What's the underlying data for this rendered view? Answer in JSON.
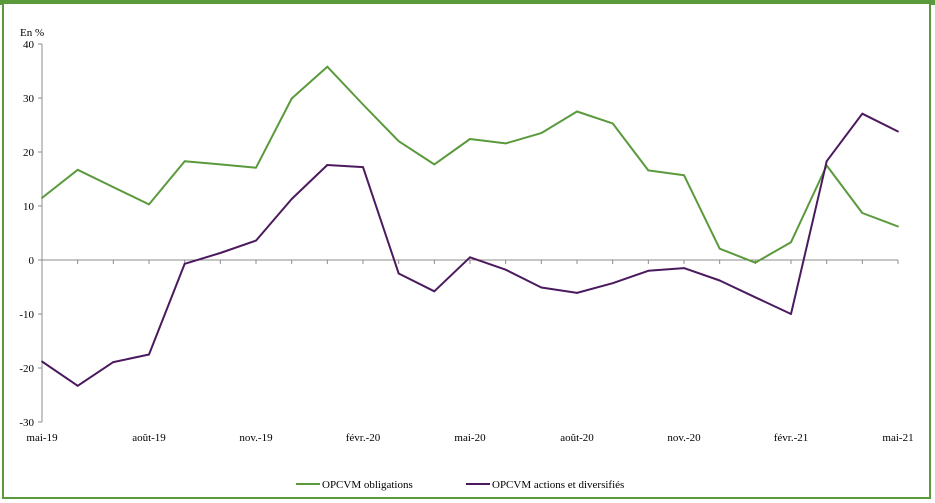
{
  "chart_data": {
    "type": "line",
    "unit_label": "En %",
    "x": [
      "mai-19",
      "juin-19",
      "juil.-19",
      "août-19",
      "sept.-19",
      "oct.-19",
      "nov.-19",
      "déc.-19",
      "janv.-20",
      "févr.-20",
      "mars-20",
      "avr.-20",
      "mai-20",
      "juin-20",
      "juil.-20",
      "août-20",
      "sept.-20",
      "oct.-20",
      "nov.-20",
      "déc.-20",
      "janv.-21",
      "févr.-21",
      "mars-21",
      "avr.-21",
      "mai-21"
    ],
    "x_tick_labels": [
      "mai-19",
      "août-19",
      "nov.-19",
      "févr.-20",
      "mai-20",
      "août-20",
      "nov.-20",
      "févr.-21",
      "mai-21"
    ],
    "y_ticks": [
      "40",
      "30",
      "20",
      "10",
      "0",
      "-10",
      "-20",
      "-30"
    ],
    "ylim": [
      -30,
      40
    ],
    "series": [
      {
        "name": "OPCVM obligations",
        "color": "#5a9a3c",
        "values": [
          11.5,
          16.7,
          13.5,
          10.3,
          18.3,
          17.7,
          17.1,
          29.9,
          35.8,
          28.8,
          22.0,
          17.7,
          22.4,
          21.6,
          23.5,
          27.5,
          25.3,
          16.6,
          15.7,
          2.1,
          -0.5,
          3.3,
          17.5,
          8.7,
          6.2
        ]
      },
      {
        "name": "OPCVM actions et diversifiés",
        "color": "#4b1a5e",
        "values": [
          -18.8,
          -23.3,
          -18.9,
          -17.5,
          -0.7,
          1.3,
          3.6,
          11.3,
          17.6,
          17.2,
          -2.5,
          -5.8,
          0.5,
          -1.8,
          -5.1,
          -6.1,
          -4.3,
          -2.0,
          -1.5,
          -3.8,
          -6.9,
          -10.0,
          18.3,
          27.1,
          23.8
        ]
      }
    ],
    "grid": false,
    "legend_position": "bottom"
  }
}
